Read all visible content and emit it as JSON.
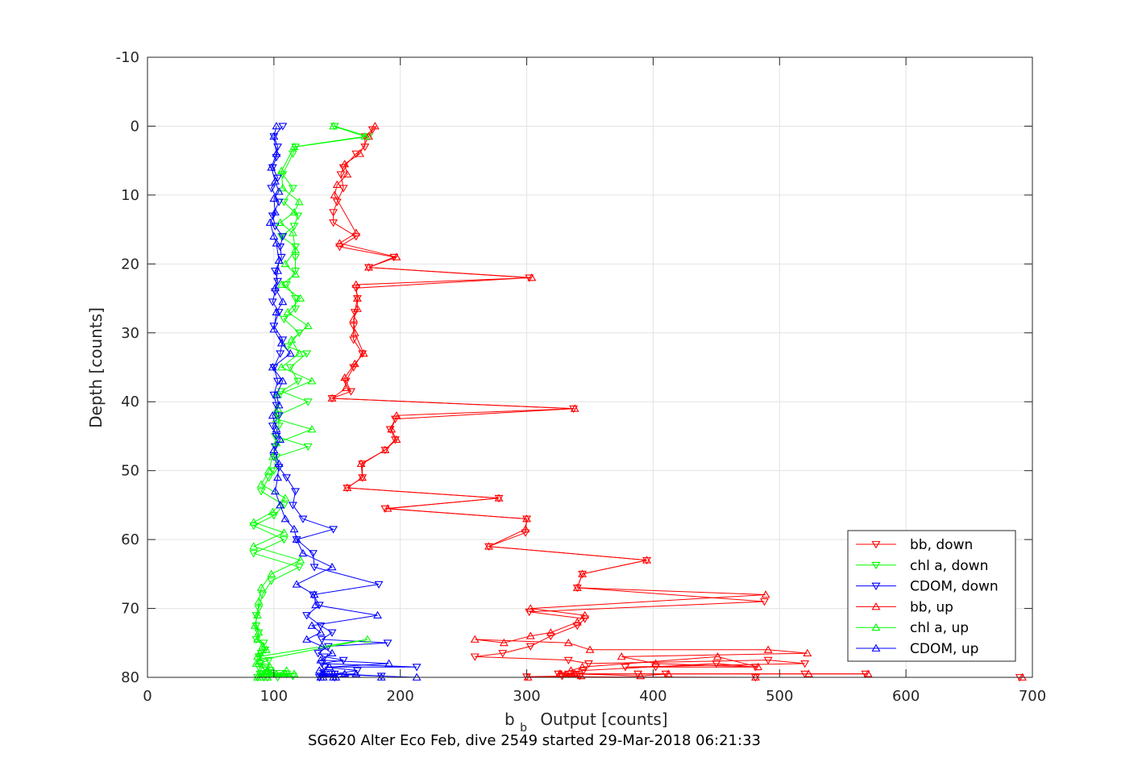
{
  "chart_data": {
    "type": "line",
    "xlabel": "Output [counts]",
    "xlabel_symbol": "b",
    "xlabel_subscript": "b",
    "ylabel": "Depth [counts]",
    "footer": "SG620 Alter Eco Feb, dive 2549 started 29-Mar-2018 06:21:33",
    "xlim": [
      0,
      700
    ],
    "ylim": [
      -10,
      80
    ],
    "y_reversed": true,
    "xticks": [
      0,
      100,
      200,
      300,
      400,
      500,
      600,
      700
    ],
    "yticks": [
      -10,
      0,
      10,
      20,
      30,
      40,
      50,
      60,
      70,
      80
    ],
    "grid": true,
    "legend_position": "bottom-right",
    "series": [
      {
        "name": "bb, down",
        "color": "#ff0000",
        "marker": "triangle-down",
        "x": [
          178,
          172,
          172,
          165,
          155,
          153,
          155,
          150,
          147,
          147,
          165,
          152,
          195,
          175,
          302,
          165,
          166,
          164,
          163,
          163,
          170,
          163,
          157,
          161,
          146,
          337,
          196,
          192,
          196,
          188,
          170,
          170,
          158,
          278,
          188,
          300,
          299,
          270,
          395,
          344,
          340,
          488,
          302,
          346,
          340,
          319,
          303,
          281,
          259,
          333,
          349,
          491,
          520,
          378,
          402,
          481,
          450,
          345,
          333,
          325,
          520,
          568,
          410,
          388,
          339,
          328,
          342,
          300,
          481,
          690
        ],
        "y": [
          0.5,
          1.5,
          3,
          4,
          6,
          7,
          9,
          11,
          12.5,
          14,
          16,
          17.5,
          19,
          20.5,
          22,
          23.5,
          25,
          27,
          29,
          31,
          33,
          35,
          37,
          38.5,
          39.5,
          41,
          42.5,
          44,
          45.5,
          47,
          49,
          51,
          52.5,
          54,
          55.5,
          57,
          59,
          61,
          63,
          65,
          67,
          69,
          70.5,
          71.5,
          72.5,
          74,
          75.5,
          76.5,
          77,
          77.5,
          78,
          77.5,
          78,
          78.5,
          78.5,
          78.5,
          78,
          79,
          79.5,
          79.5,
          79.5,
          79.5,
          79.5,
          79.5,
          79.5,
          79.8,
          79.8,
          79.9,
          80,
          80
        ]
      },
      {
        "name": "chl a, down",
        "color": "#00ff00",
        "marker": "triangle-down",
        "x": [
          148,
          175,
          117,
          115,
          107,
          115,
          108,
          119,
          116,
          106,
          117,
          117,
          117,
          110,
          117,
          117,
          108,
          120,
          111,
          126,
          113,
          119,
          106,
          127,
          103,
          104,
          101,
          127,
          102,
          100,
          96,
          90,
          108,
          100,
          84,
          108,
          84,
          120,
          98,
          91,
          88,
          86,
          86,
          88,
          86,
          92,
          93,
          90,
          88,
          96,
          89,
          88,
          93,
          97,
          95,
          110,
          103,
          92,
          110,
          89,
          115,
          95,
          87,
          90,
          95
        ],
        "y": [
          0,
          1.5,
          3,
          4,
          7,
          9,
          11,
          13,
          14.5,
          16,
          17.5,
          19,
          21,
          23,
          25,
          26.5,
          28,
          30,
          32,
          33,
          35,
          37,
          38.5,
          40,
          42,
          43.5,
          45,
          46.5,
          48,
          50,
          51,
          53,
          55,
          56.5,
          58,
          60,
          62,
          64,
          66,
          68,
          70,
          71,
          72.5,
          73.5,
          74.5,
          75,
          76,
          76.5,
          77,
          77.5,
          78,
          78.5,
          78.5,
          79,
          79.5,
          79.5,
          80,
          80,
          79.5,
          79.5,
          79.8,
          80,
          80,
          79.5,
          79.5
        ]
      },
      {
        "name": "CDOM, down",
        "color": "#0000ff",
        "marker": "triangle-down",
        "x": [
          107,
          100,
          103,
          102,
          99,
          103,
          98,
          104,
          99,
          101,
          107,
          105,
          106,
          101,
          103,
          101,
          99,
          104,
          100,
          107,
          105,
          100,
          103,
          100,
          102,
          104,
          99,
          102,
          101,
          100,
          104,
          110,
          117,
          115,
          123,
          147,
          118,
          131,
          132,
          183,
          131,
          136,
          126,
          137,
          146,
          138,
          190,
          143,
          135,
          140,
          155,
          138,
          213,
          140,
          166,
          148,
          185,
          140,
          146,
          137,
          148,
          136
        ],
        "y": [
          0,
          1.5,
          3,
          4.5,
          6,
          7.5,
          9,
          11,
          13,
          14.5,
          16,
          17.5,
          19,
          21,
          22.5,
          24,
          25.5,
          27,
          29,
          31,
          33,
          35,
          37,
          39,
          40.5,
          42,
          43.5,
          45,
          46.5,
          48,
          49.5,
          51,
          53,
          55,
          57,
          58.5,
          60,
          62,
          64,
          66.5,
          68,
          69.5,
          71,
          72.5,
          73.5,
          74.5,
          75,
          75.5,
          76.5,
          77,
          77.5,
          78,
          78.5,
          78.5,
          79,
          79.5,
          79.8,
          79.5,
          79.5,
          79.8,
          80,
          80
        ]
      },
      {
        "name": "bb, up",
        "color": "#ff0000",
        "marker": "triangle-up",
        "x": [
          180,
          175,
          168,
          156,
          158,
          150,
          148,
          165,
          152,
          197,
          175,
          304,
          165,
          166,
          166,
          163,
          164,
          171,
          164,
          156,
          157,
          146,
          338,
          197,
          193,
          197,
          188,
          169,
          170,
          158,
          278,
          190,
          300,
          299,
          270,
          395,
          344,
          340,
          489,
          303,
          346,
          340,
          319,
          303,
          282,
          259,
          333,
          350,
          491,
          522,
          375,
          402,
          483,
          451,
          344,
          335,
          326,
          523,
          570,
          412,
          390,
          338,
          327,
          343,
          301,
          481,
          692
        ],
        "y": [
          0,
          1.5,
          4,
          5.5,
          7,
          8.5,
          10,
          15.5,
          17,
          19,
          20.5,
          22,
          23,
          25,
          26.5,
          28,
          30,
          33,
          34.5,
          36.5,
          38,
          39.5,
          41,
          42,
          44,
          45.5,
          47,
          49,
          51,
          52.5,
          54,
          55.5,
          57,
          58.5,
          61,
          63,
          65,
          67,
          68,
          70,
          71,
          72,
          73.5,
          74,
          75,
          74.5,
          75,
          76,
          76,
          76.5,
          77,
          78,
          78.5,
          77,
          78.5,
          79,
          79.5,
          79.5,
          79.5,
          79.5,
          79.8,
          79.5,
          79.5,
          79.8,
          80,
          80,
          80
        ]
      },
      {
        "name": "chl a, up",
        "color": "#00ff00",
        "marker": "triangle-up",
        "x": [
          147,
          172,
          116,
          106,
          107,
          120,
          116,
          105,
          115,
          117,
          109,
          117,
          106,
          121,
          111,
          127,
          114,
          120,
          106,
          130,
          103,
          103,
          102,
          130,
          102,
          99,
          96,
          90,
          109,
          99,
          84,
          108,
          84,
          121,
          98,
          90,
          88,
          87,
          85,
          88,
          87,
          91,
          94,
          89,
          87,
          174,
          89,
          86,
          97,
          95,
          110,
          102,
          91,
          109,
          89,
          116,
          94,
          87,
          90,
          95
        ],
        "y": [
          0,
          1.5,
          3,
          6.5,
          9,
          11,
          12.5,
          14,
          15.5,
          18,
          20,
          21.5,
          23,
          25,
          27,
          29,
          31,
          33,
          35,
          37,
          39,
          41,
          42.5,
          44,
          46,
          48,
          50,
          52,
          54,
          56,
          57.5,
          59,
          61,
          63,
          65,
          67,
          69,
          71,
          72.5,
          73.5,
          74.5,
          75.5,
          76,
          76.5,
          77,
          74.5,
          77.5,
          78,
          78.5,
          79,
          79,
          79.5,
          79,
          79.5,
          80,
          79.5,
          79.5,
          80,
          79.5,
          80
        ]
      },
      {
        "name": "CDOM, up",
        "color": "#0000ff",
        "marker": "triangle-up",
        "x": [
          102,
          100,
          102,
          98,
          101,
          104,
          100,
          101,
          97,
          100,
          102,
          104,
          103,
          101,
          107,
          102,
          100,
          106,
          113,
          99,
          107,
          102,
          104,
          99,
          102,
          105,
          100,
          104,
          103,
          101,
          105,
          109,
          116,
          118,
          123,
          146,
          118,
          132,
          133,
          182,
          130,
          137,
          126,
          138,
          146,
          137,
          191,
          144,
          136,
          140,
          156,
          139,
          213,
          139,
          165,
          149,
          185,
          139,
          147,
          138,
          147,
          137
        ],
        "y": [
          0,
          1.5,
          4,
          6,
          8,
          9.5,
          10.5,
          12.5,
          14,
          16,
          17,
          19.5,
          21,
          23.5,
          25.5,
          27,
          29.5,
          31.5,
          33,
          35,
          37,
          39,
          40.5,
          42,
          44,
          45.5,
          47,
          49,
          51,
          53,
          55,
          57,
          58.5,
          60,
          62,
          64,
          66.5,
          68,
          69.5,
          71,
          72.5,
          73.5,
          74.5,
          75.5,
          76.5,
          77.5,
          78,
          78.5,
          79,
          79.5,
          79.5,
          79.5,
          80,
          79.5,
          79.5,
          80,
          80,
          80,
          79.5,
          79.5,
          80,
          80
        ]
      }
    ]
  }
}
